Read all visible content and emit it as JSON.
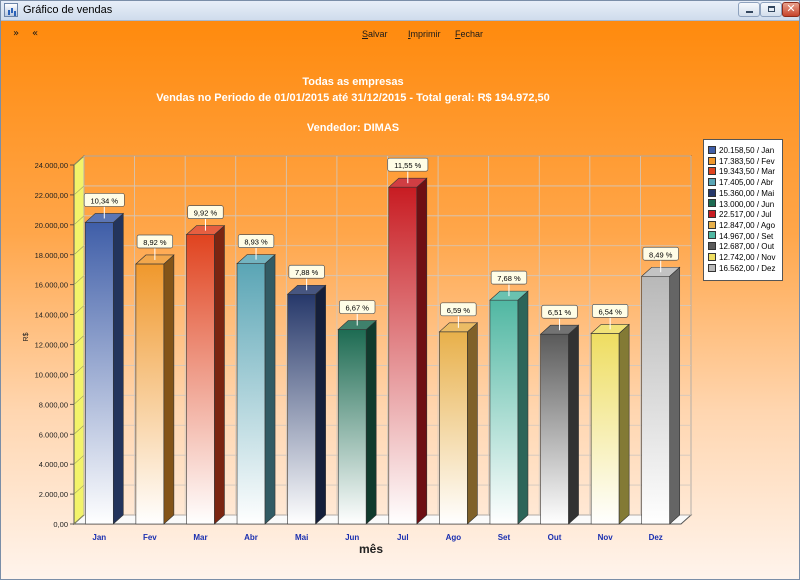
{
  "window": {
    "title": "Gráfico de vendas"
  },
  "toolbar": {
    "next": "»",
    "prev": "«",
    "menus": [
      {
        "first": "S",
        "rest": "alvar"
      },
      {
        "first": "I",
        "rest": "mprimir"
      },
      {
        "first": "F",
        "rest": "echar"
      }
    ]
  },
  "chart_data": {
    "type": "bar",
    "title": "Todas as empresas",
    "subtitle": "Vendas no Periodo de 01/01/2015 até 31/12/2015 - Total geral: R$ 194.972,50",
    "subtitle2": "Vendedor: DIMAS",
    "xlabel": "mês",
    "ylabel": "R$",
    "ylim": [
      0,
      24000
    ],
    "yticks": [
      "0,00",
      "2.000,00",
      "4.000,00",
      "6.000,00",
      "8.000,00",
      "10.000,00",
      "12.000,00",
      "14.000,00",
      "16.000,00",
      "18.000,00",
      "20.000,00",
      "22.000,00",
      "24.000,00"
    ],
    "categories": [
      "Jan",
      "Fev",
      "Mar",
      "Abr",
      "Mai",
      "Jun",
      "Jul",
      "Ago",
      "Set",
      "Out",
      "Nov",
      "Dez"
    ],
    "values": [
      20158.5,
      17383.5,
      19343.5,
      17405.0,
      15360.0,
      13000.0,
      22517.0,
      12847.0,
      14967.0,
      12687.0,
      12742.0,
      16562.0
    ],
    "percent_labels": [
      "10,34 %",
      "8,92 %",
      "9,92 %",
      "8,93 %",
      "7,88 %",
      "6,67 %",
      "11,55 %",
      "6,59 %",
      "7,68 %",
      "6,51 %",
      "6,54 %",
      "8,49 %"
    ],
    "legend_labels": [
      "20.158,50 /  Jan",
      "17.383,50 /  Fev",
      "19.343,50 /  Mar",
      "17.405,00 /  Abr",
      "15.360,00 /  Mai",
      "13.000,00 /  Jun",
      "22.517,00 /  Jul",
      "12.847,00 /  Ago",
      "14.967,00 /  Set",
      "12.687,00 /  Out",
      "12.742,00 /  Nov",
      "16.562,00 /  Dez"
    ],
    "colors": [
      "#3f5ea8",
      "#f0982c",
      "#e0431f",
      "#5aa5b5",
      "#26386a",
      "#1d6b52",
      "#c81c22",
      "#e8b04a",
      "#50b7a2",
      "#5a5a5a",
      "#eedd60",
      "#b8b8b8"
    ],
    "grid": true,
    "legend_position": "right"
  }
}
